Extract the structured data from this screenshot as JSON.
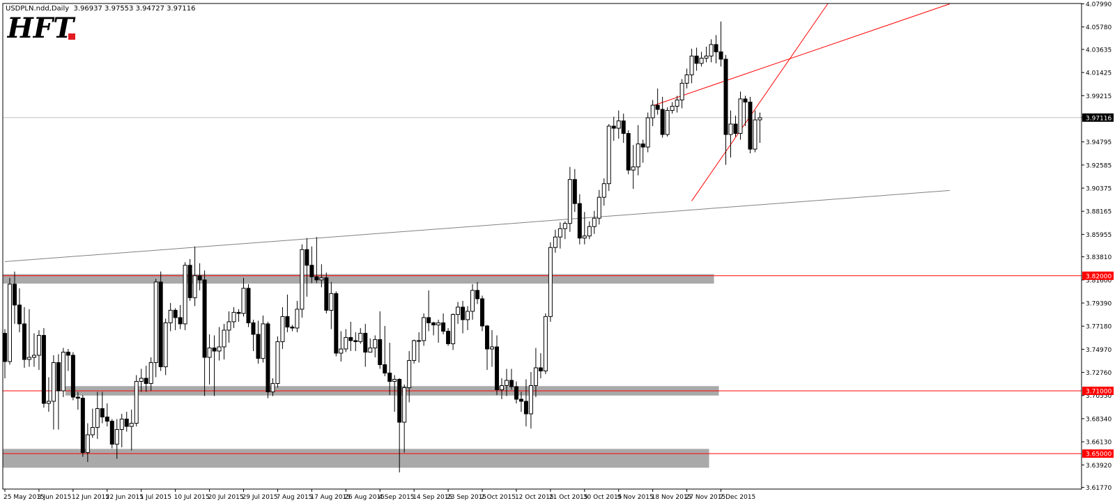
{
  "header": {
    "symbol": "USDPLN.ndd,Daily",
    "ohlc": "3.96937 3.97553 3.94727 3.97116"
  },
  "logo": {
    "text": "HFT",
    "accent": "#e31b23"
  },
  "chart_data": {
    "type": "candlestick",
    "title": "USDPLN.ndd,Daily",
    "xlabel": "",
    "ylabel": "",
    "ylim": [
      3.6154,
      4.079
    ],
    "y_ticks": [
      "4.07990",
      "4.05780",
      "4.03635",
      "4.01425",
      "3.99215",
      "3.97116",
      "3.94795",
      "3.92585",
      "3.90375",
      "3.88165",
      "3.85955",
      "3.83810",
      "3.81600",
      "3.79390",
      "3.77180",
      "3.74970",
      "3.72760",
      "3.70550",
      "3.68340",
      "3.66130",
      "3.63920",
      "3.61770"
    ],
    "y_tick_values": [
      4.0799,
      4.0578,
      4.03635,
      4.01425,
      3.99215,
      3.97116,
      3.94795,
      3.92585,
      3.90375,
      3.88165,
      3.85955,
      3.8381,
      3.816,
      3.7939,
      3.7718,
      3.7497,
      3.7276,
      3.7055,
      3.6834,
      3.6613,
      3.6392,
      3.6177
    ],
    "x_ticks": [
      "25 May 2015",
      "3 Jun 2015",
      "12 Jun 2015",
      "22 Jun 2015",
      "1 Jul 2015",
      "10 Jul 2015",
      "20 Jul 2015",
      "29 Jul 2015",
      "7 Aug 2015",
      "17 Aug 2015",
      "26 Aug 2015",
      "4 Sep 2015",
      "14 Sep 2015",
      "23 Sep 2015",
      "2 Oct 2015",
      "12 Oct 2015",
      "21 Oct 2015",
      "30 Oct 2015",
      "9 Nov 2015",
      "18 Nov 2015",
      "27 Nov 2015",
      "7 Dec 2015"
    ],
    "x_tick_index": [
      0,
      7,
      14,
      21,
      28,
      35,
      42,
      49,
      56,
      63,
      70,
      77,
      84,
      91,
      98,
      105,
      112,
      119,
      126,
      133,
      140,
      147
    ],
    "current_price": {
      "label": "3.97116",
      "value": 3.97116,
      "bg": "#000000",
      "fg": "#ffffff"
    },
    "levels": [
      {
        "label": "3.82000",
        "value": 3.82,
        "color": "#ff0000"
      },
      {
        "label": "3.71000",
        "value": 3.71,
        "color": "#ff0000"
      },
      {
        "label": "3.65000",
        "value": 3.65,
        "color": "#ff0000"
      }
    ],
    "zones": [
      {
        "from_index": 0,
        "to_index": 145,
        "y_low": 3.8125,
        "y_high": 3.8215,
        "color": "#a9a9a9"
      },
      {
        "from_index": 13,
        "to_index": 146,
        "y_low": 3.7055,
        "y_high": 3.7145,
        "color": "#a9a9a9"
      },
      {
        "from_index": 0,
        "to_index": 144,
        "y_low": 3.6365,
        "y_high": 3.6545,
        "color": "#a9a9a9"
      }
    ],
    "trendlines": [
      {
        "from_index": 0,
        "from_value": 3.8335,
        "to_index": 194,
        "to_value": 3.9015,
        "color": "#808080"
      },
      {
        "from_index": 133,
        "from_value": 3.9825,
        "to_index": 194,
        "to_value": 4.0799,
        "color": "#ff0000"
      },
      {
        "from_index": 141,
        "from_value": 3.8915,
        "to_index": 169,
        "to_value": 4.0805,
        "color": "#ff0000"
      }
    ],
    "candles": [
      [
        3.765,
        3.769,
        3.722,
        3.738
      ],
      [
        3.738,
        3.818,
        3.735,
        3.812
      ],
      [
        3.812,
        3.824,
        3.774,
        3.792
      ],
      [
        3.792,
        3.808,
        3.766,
        3.774
      ],
      [
        3.774,
        3.79,
        3.732,
        3.74
      ],
      [
        3.74,
        3.788,
        3.733,
        3.742
      ],
      [
        3.742,
        3.765,
        3.733,
        3.744
      ],
      [
        3.744,
        3.768,
        3.73,
        3.763
      ],
      [
        3.763,
        3.77,
        3.694,
        3.698
      ],
      [
        3.698,
        3.723,
        3.69,
        3.7
      ],
      [
        3.7,
        3.744,
        3.673,
        3.737
      ],
      [
        3.737,
        3.745,
        3.673,
        3.71
      ],
      [
        3.71,
        3.751,
        3.704,
        3.747
      ],
      [
        3.747,
        3.75,
        3.729,
        3.744
      ],
      [
        3.744,
        3.747,
        3.701,
        3.704
      ],
      [
        3.704,
        3.709,
        3.692,
        3.703
      ],
      [
        3.703,
        3.706,
        3.647,
        3.651
      ],
      [
        3.651,
        3.679,
        3.642,
        3.668
      ],
      [
        3.668,
        3.693,
        3.665,
        3.675
      ],
      [
        3.675,
        3.709,
        3.664,
        3.693
      ],
      [
        3.693,
        3.709,
        3.679,
        3.685
      ],
      [
        3.685,
        3.698,
        3.676,
        3.681
      ],
      [
        3.681,
        3.683,
        3.655,
        3.659
      ],
      [
        3.659,
        3.683,
        3.645,
        3.673
      ],
      [
        3.673,
        3.688,
        3.656,
        3.683
      ],
      [
        3.683,
        3.69,
        3.671,
        3.676
      ],
      [
        3.676,
        3.692,
        3.653,
        3.679
      ],
      [
        3.679,
        3.725,
        3.676,
        3.719
      ],
      [
        3.719,
        3.731,
        3.709,
        3.722
      ],
      [
        3.722,
        3.734,
        3.709,
        3.717
      ],
      [
        3.717,
        3.742,
        3.71,
        3.737
      ],
      [
        3.737,
        3.817,
        3.723,
        3.814
      ],
      [
        3.814,
        3.824,
        3.729,
        3.733
      ],
      [
        3.733,
        3.779,
        3.725,
        3.775
      ],
      [
        3.775,
        3.794,
        3.767,
        3.787
      ],
      [
        3.787,
        3.789,
        3.768,
        3.78
      ],
      [
        3.78,
        3.792,
        3.769,
        3.774
      ],
      [
        3.774,
        3.833,
        3.768,
        3.83
      ],
      [
        3.83,
        3.836,
        3.796,
        3.799
      ],
      [
        3.799,
        3.848,
        3.791,
        3.82
      ],
      [
        3.82,
        3.832,
        3.806,
        3.816
      ],
      [
        3.816,
        3.825,
        3.705,
        3.742
      ],
      [
        3.742,
        3.764,
        3.716,
        3.751
      ],
      [
        3.751,
        3.763,
        3.705,
        3.748
      ],
      [
        3.748,
        3.771,
        3.739,
        3.752
      ],
      [
        3.752,
        3.774,
        3.74,
        3.768
      ],
      [
        3.768,
        3.786,
        3.756,
        3.776
      ],
      [
        3.776,
        3.79,
        3.77,
        3.785
      ],
      [
        3.785,
        3.788,
        3.776,
        3.784
      ],
      [
        3.784,
        3.818,
        3.781,
        3.808
      ],
      [
        3.808,
        3.812,
        3.771,
        3.775
      ],
      [
        3.775,
        3.778,
        3.748,
        3.764
      ],
      [
        3.764,
        3.777,
        3.736,
        3.741
      ],
      [
        3.741,
        3.782,
        3.737,
        3.774
      ],
      [
        3.774,
        3.776,
        3.703,
        3.709
      ],
      [
        3.709,
        3.722,
        3.705,
        3.717
      ],
      [
        3.717,
        3.762,
        3.713,
        3.757
      ],
      [
        3.757,
        3.79,
        3.75,
        3.781
      ],
      [
        3.781,
        3.802,
        3.766,
        3.771
      ],
      [
        3.771,
        3.773,
        3.767,
        3.77
      ],
      [
        3.77,
        3.796,
        3.766,
        3.788
      ],
      [
        3.788,
        3.85,
        3.78,
        3.845
      ],
      [
        3.845,
        3.856,
        3.8,
        3.83
      ],
      [
        3.83,
        3.848,
        3.813,
        3.819
      ],
      [
        3.819,
        3.857,
        3.813,
        3.816
      ],
      [
        3.816,
        3.831,
        3.809,
        3.818
      ],
      [
        3.818,
        3.823,
        3.784,
        3.787
      ],
      [
        3.787,
        3.814,
        3.769,
        3.803
      ],
      [
        3.803,
        3.805,
        3.743,
        3.746
      ],
      [
        3.746,
        3.767,
        3.738,
        3.75
      ],
      [
        3.75,
        3.769,
        3.747,
        3.761
      ],
      [
        3.761,
        3.776,
        3.748,
        3.758
      ],
      [
        3.758,
        3.766,
        3.748,
        3.757
      ],
      [
        3.757,
        3.77,
        3.755,
        3.765
      ],
      [
        3.765,
        3.774,
        3.733,
        3.747
      ],
      [
        3.747,
        3.76,
        3.748,
        3.751
      ],
      [
        3.751,
        3.763,
        3.742,
        3.759
      ],
      [
        3.759,
        3.786,
        3.731,
        3.735
      ],
      [
        3.735,
        3.772,
        3.724,
        3.727
      ],
      [
        3.727,
        3.756,
        3.706,
        3.719
      ],
      [
        3.719,
        3.725,
        3.69,
        3.721
      ],
      [
        3.721,
        3.722,
        3.632,
        3.68
      ],
      [
        3.68,
        3.716,
        3.651,
        3.713
      ],
      [
        3.713,
        3.748,
        3.699,
        3.739
      ],
      [
        3.739,
        3.759,
        3.736,
        3.758
      ],
      [
        3.758,
        3.766,
        3.737,
        3.758
      ],
      [
        3.758,
        3.784,
        3.753,
        3.78
      ],
      [
        3.78,
        3.806,
        3.767,
        3.775
      ],
      [
        3.775,
        3.776,
        3.763,
        3.773
      ],
      [
        3.773,
        3.778,
        3.756,
        3.775
      ],
      [
        3.775,
        3.784,
        3.764,
        3.767
      ],
      [
        3.767,
        3.77,
        3.753,
        3.755
      ],
      [
        3.755,
        3.784,
        3.749,
        3.783
      ],
      [
        3.783,
        3.795,
        3.774,
        3.79
      ],
      [
        3.79,
        3.796,
        3.765,
        3.778
      ],
      [
        3.778,
        3.791,
        3.768,
        3.786
      ],
      [
        3.786,
        3.812,
        3.778,
        3.806
      ],
      [
        3.806,
        3.814,
        3.793,
        3.798
      ],
      [
        3.798,
        3.801,
        3.767,
        3.772
      ],
      [
        3.772,
        3.773,
        3.73,
        3.75
      ],
      [
        3.75,
        3.768,
        3.733,
        3.752
      ],
      [
        3.752,
        3.763,
        3.706,
        3.711
      ],
      [
        3.711,
        3.722,
        3.702,
        3.715
      ],
      [
        3.715,
        3.731,
        3.705,
        3.72
      ],
      [
        3.72,
        3.731,
        3.711,
        3.714
      ],
      [
        3.714,
        3.719,
        3.698,
        3.702
      ],
      [
        3.702,
        3.709,
        3.69,
        3.7
      ],
      [
        3.7,
        3.721,
        3.676,
        3.688
      ],
      [
        3.688,
        3.728,
        3.674,
        3.715
      ],
      [
        3.715,
        3.751,
        3.704,
        3.732
      ],
      [
        3.732,
        3.746,
        3.722,
        3.729
      ],
      [
        3.729,
        3.784,
        3.726,
        3.781
      ],
      [
        3.781,
        3.852,
        3.776,
        3.847
      ],
      [
        3.847,
        3.864,
        3.842,
        3.857
      ],
      [
        3.857,
        3.871,
        3.846,
        3.865
      ],
      [
        3.865,
        3.872,
        3.855,
        3.87
      ],
      [
        3.87,
        3.924,
        3.862,
        3.912
      ],
      [
        3.912,
        3.922,
        3.881,
        3.889
      ],
      [
        3.889,
        3.898,
        3.85,
        3.856
      ],
      [
        3.856,
        3.881,
        3.85,
        3.858
      ],
      [
        3.858,
        3.872,
        3.855,
        3.867
      ],
      [
        3.867,
        3.882,
        3.86,
        3.875
      ],
      [
        3.875,
        3.902,
        3.869,
        3.895
      ],
      [
        3.895,
        3.913,
        3.887,
        3.908
      ],
      [
        3.908,
        3.965,
        3.901,
        3.963
      ],
      [
        3.963,
        3.972,
        3.949,
        3.961
      ],
      [
        3.961,
        3.978,
        3.951,
        3.968
      ],
      [
        3.968,
        3.975,
        3.947,
        3.956
      ],
      [
        3.956,
        3.959,
        3.917,
        3.921
      ],
      [
        3.921,
        3.945,
        3.903,
        3.924
      ],
      [
        3.924,
        3.964,
        3.916,
        3.946
      ],
      [
        3.946,
        3.95,
        3.928,
        3.943
      ],
      [
        3.943,
        3.976,
        3.938,
        3.971
      ],
      [
        3.971,
        3.988,
        3.963,
        3.983
      ],
      [
        3.983,
        3.999,
        3.974,
        3.979
      ],
      [
        3.979,
        3.991,
        3.952,
        3.955
      ],
      [
        3.955,
        3.981,
        3.953,
        3.978
      ],
      [
        3.978,
        3.986,
        3.975,
        3.982
      ],
      [
        3.982,
        3.992,
        3.976,
        3.988
      ],
      [
        3.988,
        4.008,
        3.98,
        4.004
      ],
      [
        4.004,
        4.018,
        3.999,
        4.012
      ],
      [
        4.012,
        4.037,
        4.004,
        4.03
      ],
      [
        4.03,
        4.038,
        4.016,
        4.023
      ],
      [
        4.023,
        4.034,
        4.02,
        4.028
      ],
      [
        4.028,
        4.039,
        4.024,
        4.03
      ],
      [
        4.03,
        4.046,
        4.024,
        4.041
      ],
      [
        4.041,
        4.05,
        4.023,
        4.034
      ],
      [
        4.034,
        4.063,
        4.02,
        4.027
      ],
      [
        4.027,
        4.031,
        3.926,
        3.955
      ],
      [
        3.955,
        3.978,
        3.933,
        3.965
      ],
      [
        3.965,
        3.973,
        3.953,
        3.956
      ],
      [
        3.956,
        3.996,
        3.95,
        3.989
      ],
      [
        3.989,
        3.992,
        3.963,
        3.986
      ],
      [
        3.986,
        3.991,
        3.937,
        3.941
      ],
      [
        3.941,
        3.978,
        3.938,
        3.969
      ],
      [
        3.969,
        3.976,
        3.947,
        3.971
      ]
    ]
  }
}
